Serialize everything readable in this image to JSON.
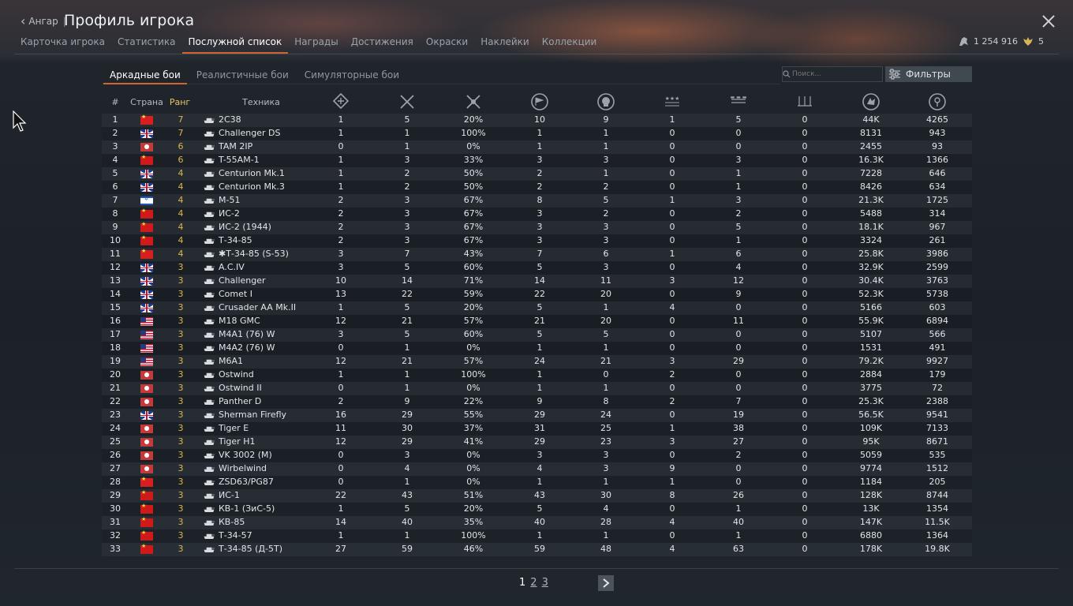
{
  "header": {
    "back_label": "Ангар",
    "separator": "|",
    "title": "Профиль игрока",
    "tabs": [
      "Карточка игрока",
      "Статистика",
      "Послужной список",
      "Награды",
      "Достижения",
      "Окраски",
      "Наклейки",
      "Коллекции"
    ],
    "active_tab": "Послужной список",
    "silver": "1 254 916",
    "gold": "5"
  },
  "modes": {
    "items": [
      "Аркадные бои",
      "Реалистичные бои",
      "Симуляторные бои"
    ],
    "active": "Аркадные бои",
    "search_placeholder": "Поиск...",
    "filters_label": "Фильтры"
  },
  "columns": {
    "num": "#",
    "country": "Страна",
    "rank": "Ранг",
    "vehicle": "Техника",
    "icons": [
      "battles-icon",
      "respawns-icon",
      "victories-icon",
      "wins-percent-icon",
      "deaths-icon",
      "air-kills-icon",
      "ground-kills-icon",
      "naval-kills-icon",
      "experience-icon",
      "research-icon"
    ]
  },
  "rows": [
    {
      "n": "1",
      "flag": "cn",
      "rank": "7",
      "name": "2C38",
      "v": [
        "1",
        "5",
        "20%",
        "10",
        "9",
        "1",
        "5",
        "0",
        "44K",
        "4265"
      ]
    },
    {
      "n": "2",
      "flag": "gb",
      "rank": "7",
      "name": "Challenger DS",
      "v": [
        "1",
        "1",
        "100%",
        "1",
        "1",
        "0",
        "0",
        "0",
        "8131",
        "943"
      ]
    },
    {
      "n": "3",
      "flag": "de",
      "rank": "6",
      "name": "TAM 2IP",
      "v": [
        "0",
        "1",
        "0%",
        "1",
        "1",
        "0",
        "0",
        "0",
        "2455",
        "93"
      ]
    },
    {
      "n": "4",
      "flag": "ch",
      "rank": "6",
      "name": "T-55AM-1",
      "v": [
        "1",
        "3",
        "33%",
        "3",
        "3",
        "0",
        "3",
        "0",
        "16.3K",
        "1366"
      ]
    },
    {
      "n": "5",
      "flag": "gb",
      "rank": "4",
      "name": "Centurion Mk.1",
      "v": [
        "1",
        "2",
        "50%",
        "2",
        "1",
        "0",
        "1",
        "0",
        "7228",
        "646"
      ]
    },
    {
      "n": "6",
      "flag": "gb",
      "rank": "4",
      "name": "Centurion Mk.3",
      "v": [
        "1",
        "2",
        "50%",
        "2",
        "2",
        "0",
        "1",
        "0",
        "8426",
        "634"
      ]
    },
    {
      "n": "7",
      "flag": "il",
      "rank": "4",
      "name": "M-51",
      "v": [
        "2",
        "3",
        "67%",
        "8",
        "5",
        "1",
        "3",
        "0",
        "21.3K",
        "1725"
      ]
    },
    {
      "n": "8",
      "flag": "ch",
      "rank": "4",
      "name": "ИС-2",
      "v": [
        "2",
        "3",
        "67%",
        "3",
        "2",
        "0",
        "2",
        "0",
        "5488",
        "314"
      ]
    },
    {
      "n": "9",
      "flag": "ch",
      "rank": "4",
      "name": "ИС-2 (1944)",
      "v": [
        "2",
        "3",
        "67%",
        "3",
        "3",
        "0",
        "5",
        "0",
        "18.1K",
        "967"
      ]
    },
    {
      "n": "10",
      "flag": "ch",
      "rank": "4",
      "name": "Т-34-85",
      "v": [
        "2",
        "3",
        "67%",
        "3",
        "3",
        "0",
        "1",
        "0",
        "3324",
        "261"
      ]
    },
    {
      "n": "11",
      "flag": "cn",
      "rank": "4",
      "name": "✱Т-34-85 (S-53)",
      "v": [
        "3",
        "7",
        "43%",
        "7",
        "6",
        "1",
        "6",
        "0",
        "25.8K",
        "3986"
      ]
    },
    {
      "n": "12",
      "flag": "gb",
      "rank": "3",
      "name": "A.C.IV",
      "v": [
        "3",
        "5",
        "60%",
        "5",
        "3",
        "0",
        "4",
        "0",
        "32.9K",
        "2599"
      ]
    },
    {
      "n": "13",
      "flag": "gb",
      "rank": "3",
      "name": "Challenger",
      "v": [
        "10",
        "14",
        "71%",
        "14",
        "11",
        "3",
        "12",
        "0",
        "30.4K",
        "3763"
      ]
    },
    {
      "n": "14",
      "flag": "gb",
      "rank": "3",
      "name": "Comet I",
      "v": [
        "13",
        "22",
        "59%",
        "22",
        "20",
        "0",
        "9",
        "0",
        "52.3K",
        "5738"
      ]
    },
    {
      "n": "15",
      "flag": "gb",
      "rank": "3",
      "name": "Crusader AA Mk.II",
      "v": [
        "1",
        "5",
        "20%",
        "5",
        "1",
        "4",
        "0",
        "0",
        "5166",
        "603"
      ]
    },
    {
      "n": "16",
      "flag": "us",
      "rank": "3",
      "name": "M18 GMC",
      "v": [
        "12",
        "21",
        "57%",
        "21",
        "20",
        "0",
        "11",
        "0",
        "55.9K",
        "6894"
      ]
    },
    {
      "n": "17",
      "flag": "us",
      "rank": "3",
      "name": "M4A1 (76) W",
      "v": [
        "3",
        "5",
        "60%",
        "5",
        "5",
        "0",
        "0",
        "0",
        "5107",
        "566"
      ]
    },
    {
      "n": "18",
      "flag": "us",
      "rank": "3",
      "name": "M4A2 (76) W",
      "v": [
        "0",
        "1",
        "0%",
        "1",
        "1",
        "0",
        "0",
        "0",
        "1531",
        "491"
      ]
    },
    {
      "n": "19",
      "flag": "us",
      "rank": "3",
      "name": "M6A1",
      "v": [
        "12",
        "21",
        "57%",
        "24",
        "21",
        "3",
        "29",
        "0",
        "79.2K",
        "9927"
      ]
    },
    {
      "n": "20",
      "flag": "de",
      "rank": "3",
      "name": "Ostwind",
      "v": [
        "1",
        "1",
        "100%",
        "1",
        "0",
        "2",
        "0",
        "0",
        "2884",
        "179"
      ]
    },
    {
      "n": "21",
      "flag": "de",
      "rank": "3",
      "name": "Ostwind II",
      "v": [
        "0",
        "1",
        "0%",
        "1",
        "1",
        "0",
        "0",
        "0",
        "3775",
        "72"
      ]
    },
    {
      "n": "22",
      "flag": "de",
      "rank": "3",
      "name": "Panther D",
      "v": [
        "2",
        "9",
        "22%",
        "9",
        "8",
        "2",
        "7",
        "0",
        "25.3K",
        "2388"
      ]
    },
    {
      "n": "23",
      "flag": "gb",
      "rank": "3",
      "name": "Sherman Firefly",
      "v": [
        "16",
        "29",
        "55%",
        "29",
        "24",
        "0",
        "19",
        "0",
        "56.5K",
        "9541"
      ]
    },
    {
      "n": "24",
      "flag": "de",
      "rank": "3",
      "name": "Tiger E",
      "v": [
        "11",
        "30",
        "37%",
        "31",
        "25",
        "1",
        "38",
        "0",
        "109K",
        "7133"
      ]
    },
    {
      "n": "25",
      "flag": "de",
      "rank": "3",
      "name": "Tiger H1",
      "v": [
        "12",
        "29",
        "41%",
        "29",
        "23",
        "3",
        "27",
        "0",
        "95K",
        "8671"
      ]
    },
    {
      "n": "26",
      "flag": "de",
      "rank": "3",
      "name": "VK 3002 (M)",
      "v": [
        "0",
        "3",
        "0%",
        "3",
        "3",
        "0",
        "2",
        "0",
        "5059",
        "535"
      ]
    },
    {
      "n": "27",
      "flag": "de",
      "rank": "3",
      "name": "Wirbelwind",
      "v": [
        "0",
        "4",
        "0%",
        "4",
        "3",
        "9",
        "0",
        "0",
        "9774",
        "1512"
      ]
    },
    {
      "n": "28",
      "flag": "cn",
      "rank": "3",
      "name": "ZSD63/PG87",
      "v": [
        "0",
        "1",
        "0%",
        "1",
        "1",
        "1",
        "0",
        "0",
        "1184",
        "205"
      ]
    },
    {
      "n": "29",
      "flag": "ch",
      "rank": "3",
      "name": "ИС-1",
      "v": [
        "22",
        "43",
        "51%",
        "43",
        "30",
        "8",
        "26",
        "0",
        "128K",
        "8744"
      ]
    },
    {
      "n": "30",
      "flag": "ch",
      "rank": "3",
      "name": "КВ-1 (ЗиС-5)",
      "v": [
        "1",
        "5",
        "20%",
        "5",
        "4",
        "0",
        "1",
        "0",
        "13K",
        "1354"
      ]
    },
    {
      "n": "31",
      "flag": "ch",
      "rank": "3",
      "name": "КВ-85",
      "v": [
        "14",
        "40",
        "35%",
        "40",
        "28",
        "4",
        "40",
        "0",
        "147K",
        "11.5K"
      ]
    },
    {
      "n": "32",
      "flag": "ch",
      "rank": "3",
      "name": "Т-34-57",
      "v": [
        "1",
        "1",
        "100%",
        "1",
        "1",
        "0",
        "1",
        "0",
        "6880",
        "1364"
      ]
    },
    {
      "n": "33",
      "flag": "ch",
      "rank": "3",
      "name": "Т-34-85 (Д-5Т)",
      "v": [
        "27",
        "59",
        "46%",
        "59",
        "48",
        "4",
        "63",
        "0",
        "178K",
        "19.8K"
      ]
    }
  ],
  "pager": {
    "pages": [
      "1",
      "2",
      "3"
    ],
    "current": "1"
  }
}
